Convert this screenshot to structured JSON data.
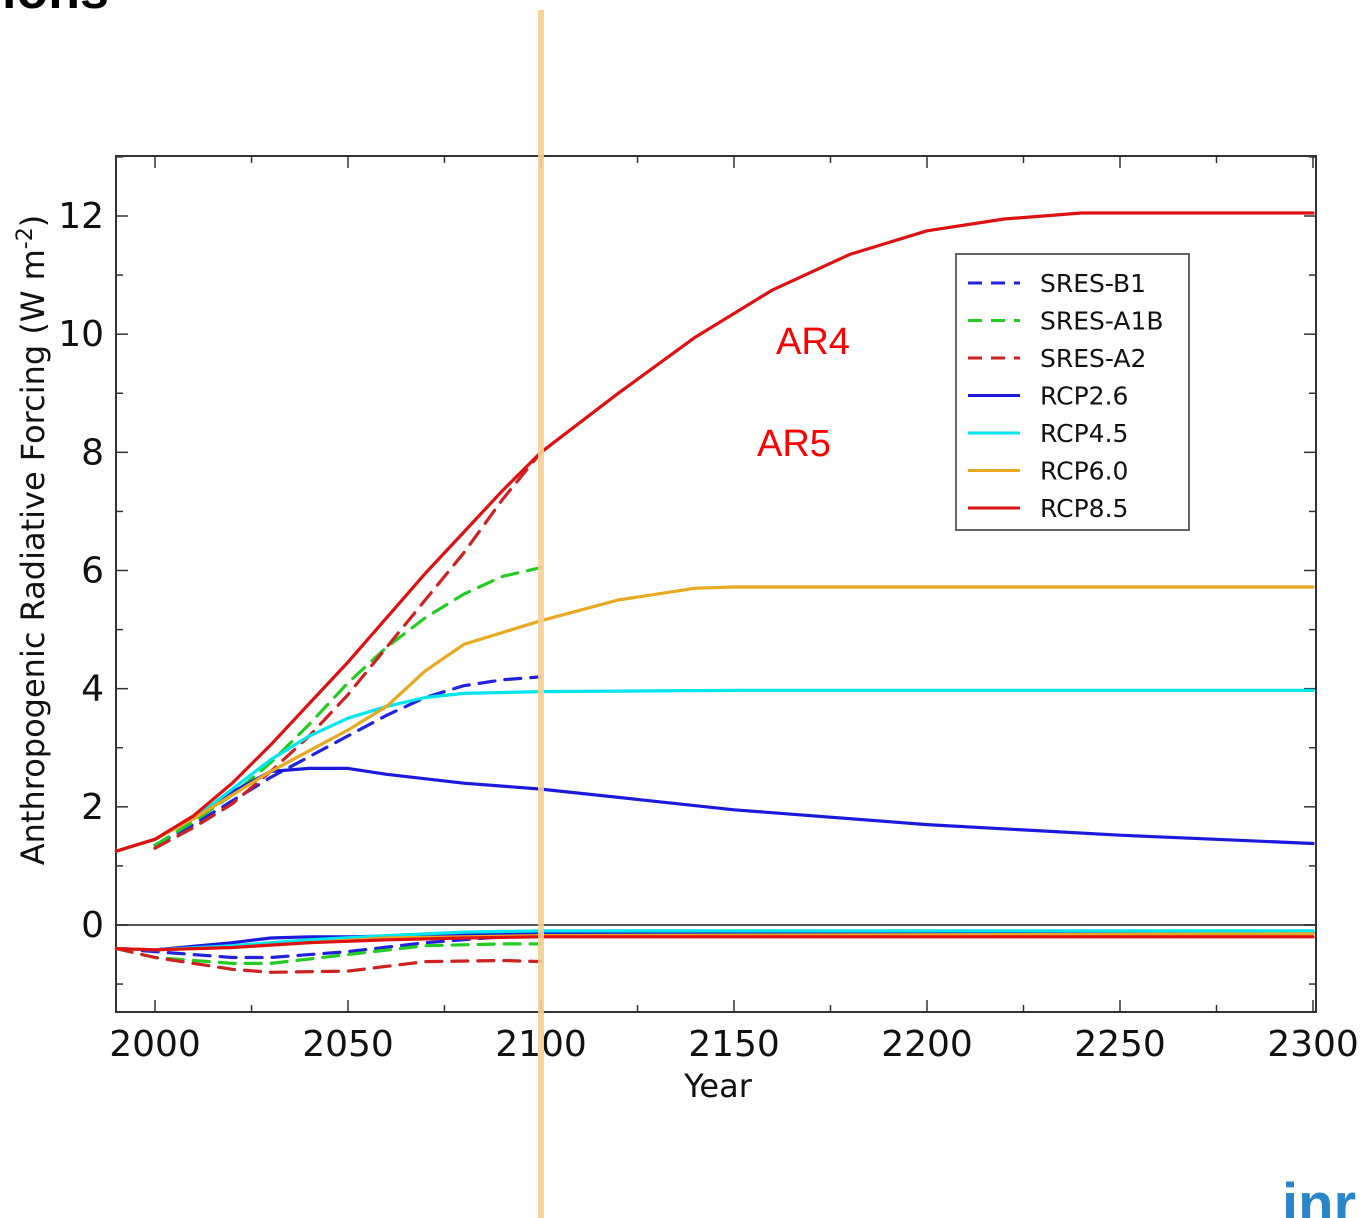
{
  "slide": {
    "title_fragment": "ions",
    "logo_fragment": "inr",
    "colors": {
      "logo": "#2a86c8",
      "divider": "#f5cf92"
    }
  },
  "chart_data": {
    "type": "line",
    "title": "",
    "xlabel": "Year",
    "ylabel": "Anthropogenic Radiative Forcing (W m⁻²)",
    "ylabel_parts": {
      "main": "Anthropogenic Radiative Forcing (W m",
      "sup": "-2",
      "end": ")"
    },
    "xlim": [
      1990,
      2300
    ],
    "ylim": [
      -1.5,
      13
    ],
    "x_ticks": [
      2000,
      2050,
      2100,
      2150,
      2200,
      2250,
      2300
    ],
    "x_tick_labels": [
      "2000",
      "2050",
      "2100",
      "2150",
      "2200",
      "2250",
      "2300"
    ],
    "y_ticks": [
      0,
      2,
      4,
      6,
      8,
      10,
      12
    ],
    "y_tick_labels": [
      "0",
      "2",
      "4",
      "6",
      "8",
      "10",
      "12"
    ],
    "grid": false,
    "zero_line": true,
    "vertical_marker_x": 2100,
    "legend_position": "upper-right",
    "legend": [
      "SRES-B1",
      "SRES-A1B",
      "SRES-A2",
      "RCP2.6",
      "RCP4.5",
      "RCP6.0",
      "RCP8.5"
    ],
    "annotations": [
      {
        "text": "AR4",
        "color": "#ff0000"
      },
      {
        "text": "AR5",
        "color": "#ff0000"
      }
    ],
    "series": [
      {
        "name": "SRES-B1",
        "color": "#2222dd",
        "dash": true,
        "x": [
          2000,
          2010,
          2020,
          2030,
          2040,
          2050,
          2060,
          2070,
          2080,
          2090,
          2100
        ],
        "y": [
          1.35,
          1.7,
          2.1,
          2.5,
          2.85,
          3.2,
          3.55,
          3.85,
          4.05,
          4.15,
          4.2
        ]
      },
      {
        "name": "SRES-A1B",
        "color": "#22cc22",
        "dash": true,
        "x": [
          2000,
          2010,
          2020,
          2030,
          2040,
          2050,
          2060,
          2070,
          2080,
          2090,
          2100
        ],
        "y": [
          1.35,
          1.75,
          2.2,
          2.75,
          3.4,
          4.1,
          4.7,
          5.2,
          5.6,
          5.9,
          6.05
        ]
      },
      {
        "name": "SRES-A2",
        "color": "#cc2222",
        "dash": true,
        "x": [
          2000,
          2010,
          2020,
          2030,
          2040,
          2050,
          2060,
          2070,
          2080,
          2090,
          2100
        ],
        "y": [
          1.3,
          1.65,
          2.05,
          2.6,
          3.2,
          3.9,
          4.7,
          5.5,
          6.3,
          7.2,
          8.0
        ]
      },
      {
        "name": "RCP2.6",
        "color": "#1a1add",
        "dash": false,
        "x": [
          1990,
          2000,
          2010,
          2020,
          2030,
          2040,
          2050,
          2060,
          2080,
          2100,
          2150,
          2200,
          2250,
          2300
        ],
        "y": [
          1.25,
          1.45,
          1.8,
          2.25,
          2.6,
          2.65,
          2.65,
          2.55,
          2.4,
          2.3,
          1.95,
          1.7,
          1.52,
          1.38
        ]
      },
      {
        "name": "RCP4.5",
        "color": "#00e5ee",
        "dash": false,
        "x": [
          1990,
          2000,
          2010,
          2020,
          2030,
          2040,
          2050,
          2060,
          2070,
          2080,
          2100,
          2150,
          2200,
          2250,
          2300
        ],
        "y": [
          1.25,
          1.45,
          1.8,
          2.3,
          2.8,
          3.2,
          3.5,
          3.7,
          3.85,
          3.92,
          3.95,
          3.97,
          3.97,
          3.97,
          3.97
        ]
      },
      {
        "name": "RCP6.0",
        "color": "#e8a820",
        "dash": false,
        "x": [
          1990,
          2000,
          2010,
          2020,
          2030,
          2040,
          2050,
          2060,
          2070,
          2080,
          2090,
          2100,
          2120,
          2140,
          2150,
          2200,
          2250,
          2300
        ],
        "y": [
          1.25,
          1.45,
          1.8,
          2.2,
          2.6,
          2.95,
          3.3,
          3.7,
          4.3,
          4.75,
          4.95,
          5.15,
          5.5,
          5.7,
          5.72,
          5.72,
          5.72,
          5.72
        ]
      },
      {
        "name": "RCP8.5",
        "color": "#dd1111",
        "dash": false,
        "x": [
          1990,
          2000,
          2010,
          2020,
          2030,
          2040,
          2050,
          2060,
          2070,
          2080,
          2090,
          2100,
          2120,
          2140,
          2160,
          2180,
          2200,
          2220,
          2240,
          2260,
          2300
        ],
        "y": [
          1.25,
          1.45,
          1.85,
          2.4,
          3.05,
          3.75,
          4.45,
          5.2,
          5.95,
          6.65,
          7.35,
          8.0,
          9.0,
          9.95,
          10.75,
          11.35,
          11.75,
          11.95,
          12.05,
          12.05,
          12.05
        ]
      },
      {
        "name": "",
        "color": "#2222dd",
        "dash": true,
        "x": [
          1990,
          2000,
          2020,
          2030,
          2050,
          2070,
          2090,
          2100
        ],
        "y": [
          -0.4,
          -0.45,
          -0.55,
          -0.55,
          -0.45,
          -0.3,
          -0.2,
          -0.18
        ]
      },
      {
        "name": "",
        "color": "#22cc22",
        "dash": true,
        "x": [
          1990,
          2000,
          2020,
          2030,
          2050,
          2070,
          2090,
          2100
        ],
        "y": [
          -0.4,
          -0.55,
          -0.65,
          -0.65,
          -0.5,
          -0.35,
          -0.32,
          -0.32
        ]
      },
      {
        "name": "",
        "color": "#cc2222",
        "dash": true,
        "x": [
          1990,
          2000,
          2020,
          2030,
          2050,
          2070,
          2090,
          2100
        ],
        "y": [
          -0.4,
          -0.55,
          -0.75,
          -0.8,
          -0.78,
          -0.62,
          -0.6,
          -0.62
        ]
      },
      {
        "name": "",
        "color": "#1a1add",
        "dash": false,
        "x": [
          1990,
          2000,
          2020,
          2030,
          2040,
          2050,
          2070,
          2100,
          2300
        ],
        "y": [
          -0.4,
          -0.42,
          -0.3,
          -0.22,
          -0.2,
          -0.2,
          -0.18,
          -0.15,
          -0.12
        ]
      },
      {
        "name": "",
        "color": "#00e5ee",
        "dash": false,
        "x": [
          1990,
          2000,
          2020,
          2040,
          2060,
          2080,
          2100,
          2300
        ],
        "y": [
          -0.4,
          -0.42,
          -0.35,
          -0.25,
          -0.18,
          -0.12,
          -0.1,
          -0.1
        ]
      },
      {
        "name": "",
        "color": "#e8a820",
        "dash": false,
        "x": [
          1990,
          2000,
          2020,
          2040,
          2060,
          2080,
          2100,
          2300
        ],
        "y": [
          -0.4,
          -0.42,
          -0.38,
          -0.3,
          -0.22,
          -0.2,
          -0.18,
          -0.15
        ]
      },
      {
        "name": "",
        "color": "#dd1111",
        "dash": false,
        "x": [
          1990,
          2000,
          2020,
          2040,
          2060,
          2080,
          2100,
          2300
        ],
        "y": [
          -0.4,
          -0.42,
          -0.38,
          -0.3,
          -0.25,
          -0.22,
          -0.2,
          -0.2
        ]
      }
    ]
  }
}
